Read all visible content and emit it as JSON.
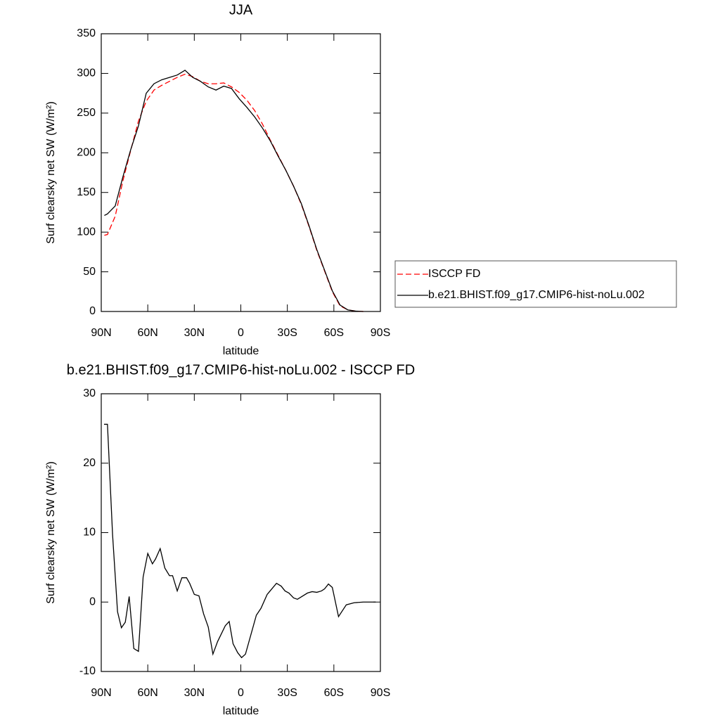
{
  "chart_data": [
    {
      "type": "line",
      "title": "JJA",
      "xlabel": "latitude",
      "ylabel": "Surf clearsky net SW (W/m²)",
      "x": [
        88,
        86,
        81,
        76,
        71,
        66,
        61,
        56,
        51,
        46,
        41,
        36,
        31,
        26,
        21,
        16,
        11,
        6,
        1,
        -4,
        -9,
        -14,
        -19,
        -24,
        -29,
        -34,
        -39,
        -44,
        -49,
        -54,
        -59,
        -64,
        -69,
        -74,
        -79
      ],
      "series": [
        {
          "name": "ISCCP FD",
          "color": "#ff0000",
          "line_style": "dashed",
          "values": [
            96,
            97,
            120,
            165,
            203,
            240,
            265,
            279,
            285,
            290,
            295,
            299,
            296,
            290,
            287,
            287,
            288,
            283,
            276,
            266,
            253,
            236,
            216,
            197,
            178,
            158,
            135,
            107,
            77,
            51,
            25,
            7,
            2,
            0.5,
            0
          ]
        },
        {
          "name": "b.e21.BHIST.f09_g17.CMIP6-hist-noLu.002",
          "color": "#000000",
          "line_style": "solid",
          "values": [
            121,
            123,
            133,
            170,
            204,
            234,
            275,
            287,
            292,
            295,
            298,
            304,
            295,
            290,
            283,
            279,
            284,
            281,
            268,
            257,
            245,
            231,
            215,
            196,
            178,
            158,
            136,
            108,
            78,
            52,
            26,
            8,
            2,
            0.5,
            0
          ]
        }
      ],
      "xlim": [
        90,
        -90
      ],
      "xticks": [
        {
          "value": 90,
          "label": "90N"
        },
        {
          "value": 60,
          "label": "60N"
        },
        {
          "value": 30,
          "label": "30N"
        },
        0,
        {
          "value": -30,
          "label": "30S"
        },
        {
          "value": -60,
          "label": "60S"
        },
        {
          "value": -90,
          "label": "90S"
        }
      ],
      "ylim": [
        0,
        350
      ],
      "yticks": [
        0,
        50,
        100,
        150,
        200,
        250,
        300,
        350
      ],
      "grid": false,
      "legend": "right"
    },
    {
      "type": "line",
      "title": "b.e21.BHIST.f09_g17.CMIP6-hist-noLu.002 - ISCCP FD",
      "xlabel": "latitude",
      "ylabel": "Surf clearsky net SW (W/m²)",
      "x": [
        88.2,
        86,
        82.7,
        79.5,
        77,
        74.5,
        72,
        69,
        66,
        63,
        60,
        57,
        55,
        52,
        49,
        46,
        44,
        41,
        38,
        35,
        33,
        30,
        27,
        24,
        21,
        18,
        15,
        10,
        7.5,
        5,
        2,
        -0.5,
        -3,
        -10,
        -13,
        -17,
        -23,
        -26,
        -28.5,
        -31,
        -34,
        -36.5,
        -43,
        -46,
        -49,
        -52,
        -54,
        -56.5,
        -59,
        -63,
        -68,
        -73,
        -79,
        -87
      ],
      "series": [
        {
          "name": "b.e21.BHIST.f09_g17.CMIP6-hist-noLu.002 - ISCCP FD",
          "color": "#000000",
          "line_style": "solid",
          "values": [
            25.6,
            25.6,
            9.7,
            -1.4,
            -3.7,
            -2.9,
            0.8,
            -6.7,
            -7.1,
            3.6,
            7,
            5.5,
            6.2,
            7.7,
            4.9,
            3.8,
            3.8,
            1.6,
            3.5,
            3.5,
            2.7,
            1.1,
            0.9,
            -1.7,
            -3.6,
            -7.5,
            -5.7,
            -3.4,
            -2.8,
            -6,
            -7.3,
            -8,
            -7.5,
            -1.9,
            -0.9,
            1.1,
            2.7,
            2.3,
            1.6,
            1.3,
            0.6,
            0.4,
            1.3,
            1.5,
            1.4,
            1.6,
            1.9,
            2.6,
            2.1,
            -2.1,
            -0.4,
            -0.1,
            0,
            0
          ]
        }
      ],
      "xlim": [
        90,
        -90
      ],
      "xticks": [
        {
          "value": 90,
          "label": "90N"
        },
        {
          "value": 60,
          "label": "60N"
        },
        {
          "value": 30,
          "label": "30N"
        },
        0,
        {
          "value": -30,
          "label": "30S"
        },
        {
          "value": -60,
          "label": "60S"
        },
        {
          "value": -90,
          "label": "90S"
        }
      ],
      "ylim": [
        -10,
        30
      ],
      "yticks": [
        -10,
        0,
        10,
        20,
        30
      ],
      "grid": false
    }
  ]
}
